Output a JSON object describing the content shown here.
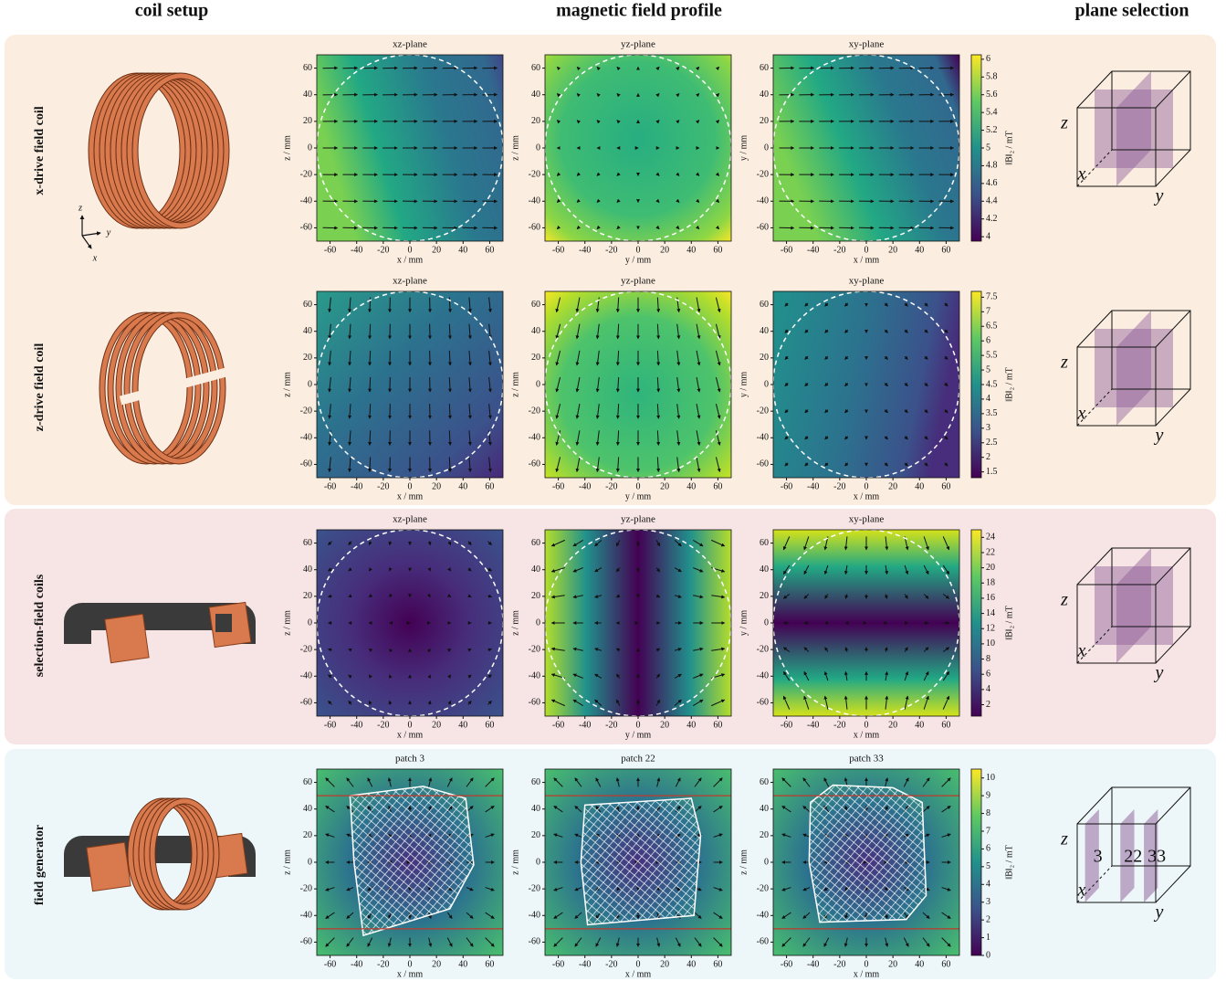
{
  "headers": {
    "coil_setup": "coil setup",
    "field_profile": "magnetic field profile",
    "plane_selection": "plane selection"
  },
  "triad": [
    "z",
    "y",
    "x"
  ],
  "cube_labels": [
    "z",
    "x",
    "y"
  ],
  "axes": {
    "xlim": [
      -70,
      70
    ],
    "ylim": [
      -70,
      70
    ],
    "xticks": [
      -60,
      -40,
      -20,
      0,
      20,
      40,
      60
    ],
    "yticks": [
      -60,
      -40,
      -20,
      0,
      20,
      40,
      60
    ]
  },
  "fov_radius": 70,
  "colormap": "viridis",
  "rows": [
    {
      "label": "x-drive field coil",
      "panels": [
        {
          "title": "xz-plane",
          "xlabel": "x / mm",
          "ylabel": "z / mm"
        },
        {
          "title": "yz-plane",
          "xlabel": "y / mm",
          "ylabel": "z / mm"
        },
        {
          "title": "xy-plane",
          "xlabel": "x / mm",
          "ylabel": "y / mm"
        }
      ],
      "colorbar": {
        "label": "‖B‖₂ / mT",
        "lim": [
          3.95,
          6.05
        ],
        "ticks": [
          4,
          4.2,
          4.4,
          4.6,
          4.8,
          5,
          5.2,
          5.4,
          5.6,
          5.8,
          6
        ]
      }
    },
    {
      "label": "z-drive field coil",
      "panels": [
        {
          "title": "xz-plane",
          "xlabel": "x / mm",
          "ylabel": "z / mm"
        },
        {
          "title": "yz-plane",
          "xlabel": "y / mm",
          "ylabel": "z / mm"
        },
        {
          "title": "xy-plane",
          "xlabel": "x / mm",
          "ylabel": "y / mm"
        }
      ],
      "colorbar": {
        "label": "‖B‖₂ / mT",
        "lim": [
          1.3,
          7.7
        ],
        "ticks": [
          1.5,
          2,
          2.5,
          3,
          3.5,
          4,
          4.5,
          5,
          5.5,
          6,
          6.5,
          7,
          7.5
        ]
      }
    },
    {
      "label": "selection-field coils",
      "panels": [
        {
          "title": "xz-plane",
          "xlabel": "x / mm",
          "ylabel": "z / mm"
        },
        {
          "title": "yz-plane",
          "xlabel": "y / mm",
          "ylabel": "z / mm"
        },
        {
          "title": "xy-plane",
          "xlabel": "x / mm",
          "ylabel": "y / mm"
        }
      ],
      "colorbar": {
        "label": "‖B‖₂ / mT",
        "lim": [
          0.5,
          25
        ],
        "ticks": [
          2,
          4,
          6,
          8,
          10,
          12,
          14,
          16,
          18,
          20,
          22,
          24
        ]
      }
    },
    {
      "label": "field generator",
      "panels": [
        {
          "title": "patch 3",
          "xlabel": "x / mm",
          "ylabel": "z / mm"
        },
        {
          "title": "patch 22",
          "xlabel": "x / mm",
          "ylabel": "z / mm"
        },
        {
          "title": "patch 33",
          "xlabel": "x / mm",
          "ylabel": "z / mm"
        }
      ],
      "colorbar": {
        "label": "‖B‖₂ / mT",
        "lim": [
          0,
          10.5
        ],
        "ticks": [
          0,
          1,
          2,
          3,
          4,
          5,
          6,
          7,
          8,
          9,
          10
        ]
      },
      "limits": [
        -50,
        50
      ],
      "planes": [
        "3",
        "22",
        "33"
      ]
    }
  ]
}
